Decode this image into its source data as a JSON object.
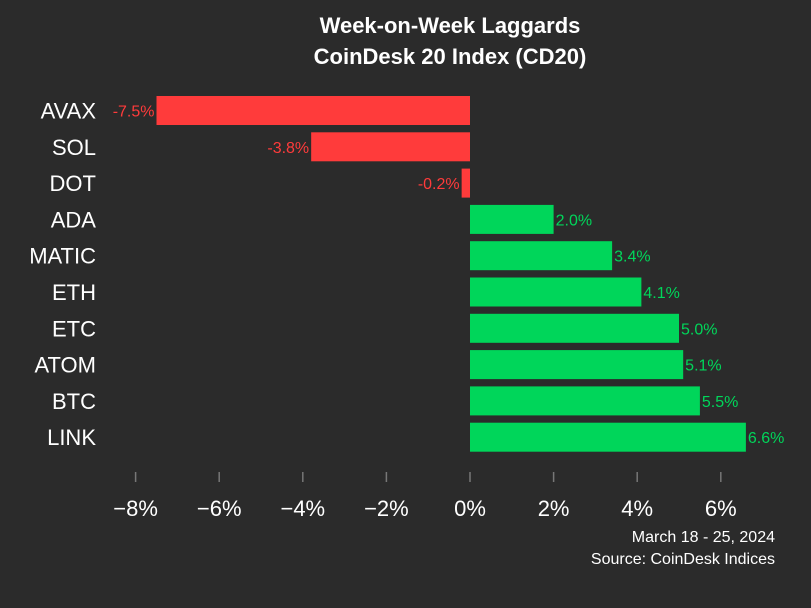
{
  "chart_data": {
    "type": "bar",
    "orientation": "horizontal",
    "title": "Week-on-Week Laggards",
    "subtitle": "CoinDesk 20 Index (CD20)",
    "categories": [
      "AVAX",
      "SOL",
      "DOT",
      "ADA",
      "MATIC",
      "ETH",
      "ETC",
      "ATOM",
      "BTC",
      "LINK"
    ],
    "values": [
      -7.5,
      -3.8,
      -0.2,
      2.0,
      3.4,
      4.1,
      5.0,
      5.1,
      5.5,
      6.6
    ],
    "value_labels": [
      "-7.5%",
      "-3.8%",
      "-0.2%",
      "2.0%",
      "3.4%",
      "4.1%",
      "5.0%",
      "5.1%",
      "5.5%",
      "6.6%"
    ],
    "x_ticks": [
      -8,
      -6,
      -4,
      -2,
      0,
      2,
      4,
      6
    ],
    "x_tick_labels": [
      "−8%",
      "−6%",
      "−4%",
      "−2%",
      "0%",
      "2%",
      "4%",
      "6%"
    ],
    "xlim": [
      -8,
      6.6
    ],
    "xlabel": "",
    "ylabel": "",
    "grid": false,
    "colors": {
      "negative": "#ff3b3b",
      "positive": "#00d65a",
      "background": "#2b2b2b",
      "text": "#ffffff",
      "tick": "#777777"
    }
  },
  "footer": {
    "date_range": "March 18 - 25, 2024",
    "source": "Source: CoinDesk Indices"
  }
}
